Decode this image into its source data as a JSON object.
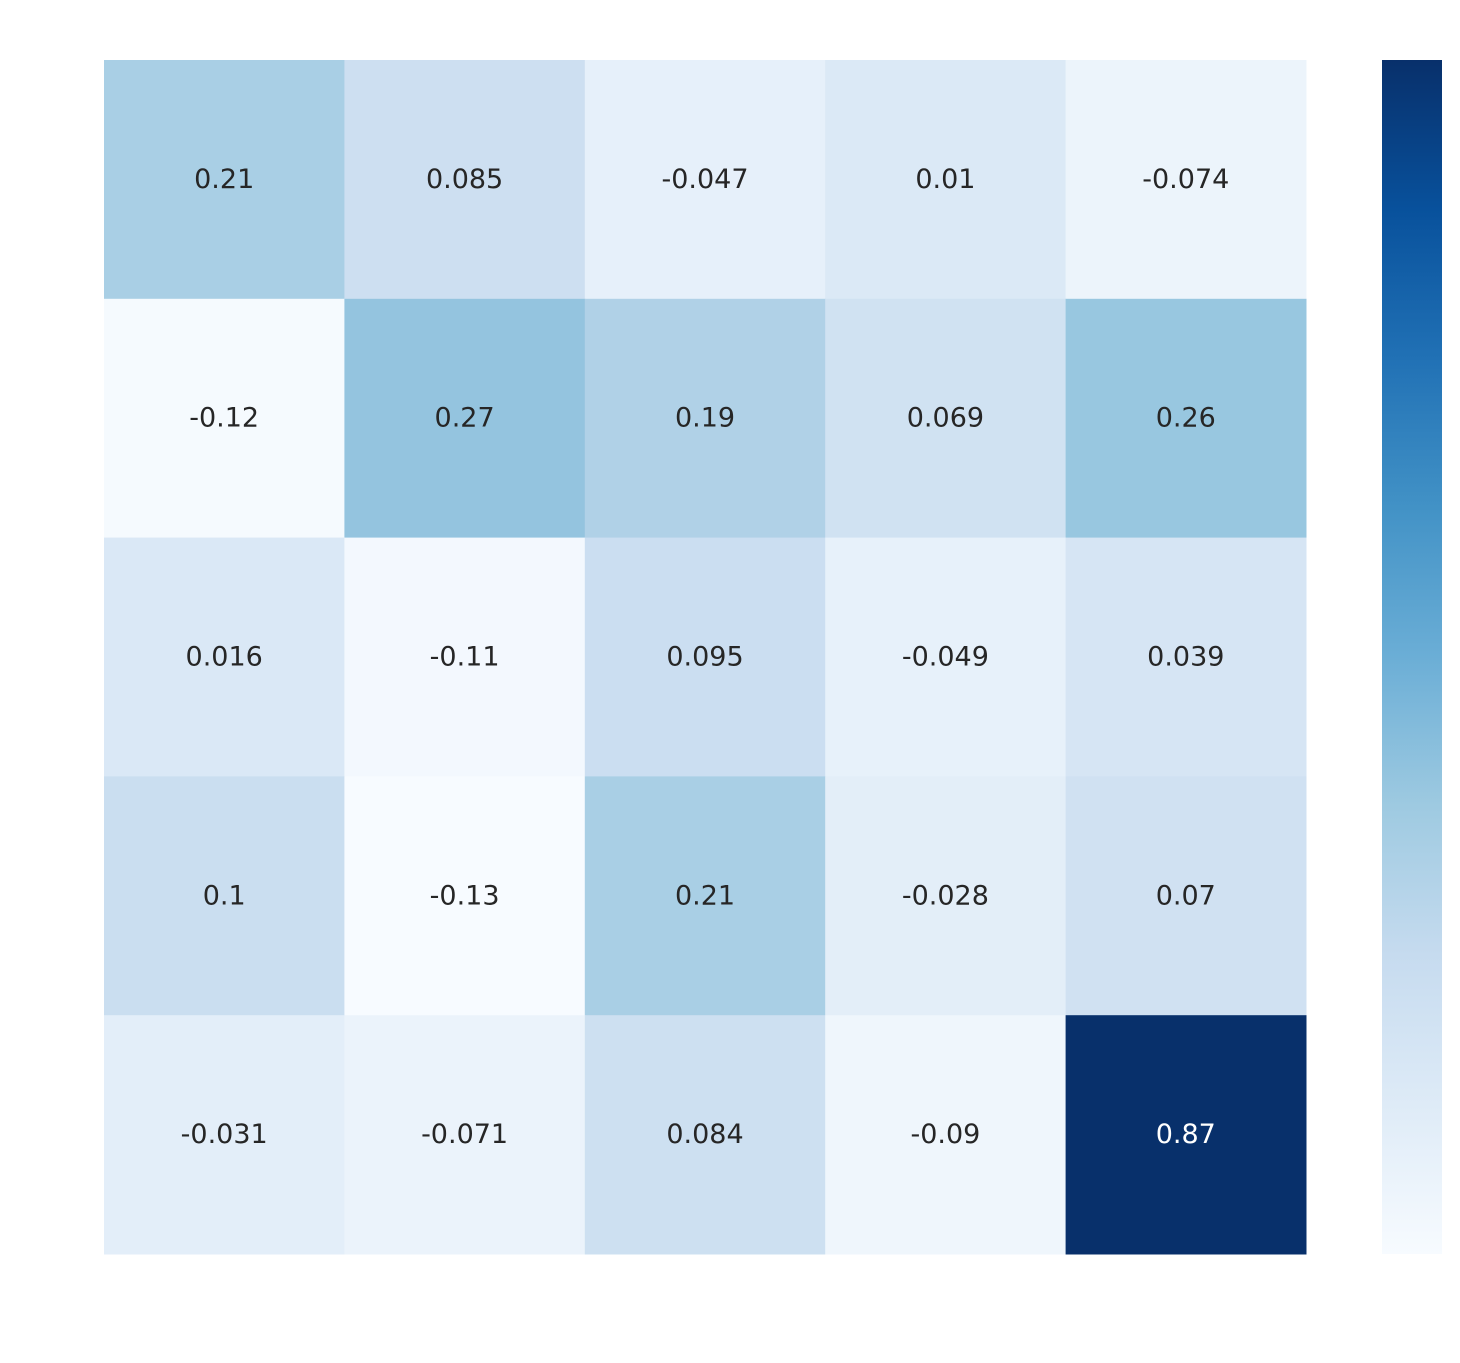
{
  "chart_data": {
    "type": "heatmap",
    "rows": 5,
    "cols": 5,
    "values": [
      [
        "0.21",
        "0.085",
        "-0.047",
        "0.01",
        "-0.074"
      ],
      [
        "-0.12",
        "0.27",
        "0.19",
        "0.069",
        "0.26"
      ],
      [
        "0.016",
        "-0.11",
        "0.095",
        "-0.049",
        "0.039"
      ],
      [
        "0.1",
        "-0.13",
        "0.21",
        "-0.028",
        "0.07"
      ],
      [
        "-0.031",
        "-0.071",
        "0.084",
        "-0.09",
        "0.87"
      ]
    ],
    "colormap": "Blues",
    "colormap_stops": [
      "#f7fbff",
      "#deebf7",
      "#c6dbef",
      "#9ecae1",
      "#6baed6",
      "#4292c6",
      "#2171b5",
      "#08519c",
      "#08306b"
    ],
    "value_range": [
      -0.13,
      0.87
    ],
    "colorbar": true,
    "title": "",
    "xlabel": "",
    "ylabel": ""
  }
}
